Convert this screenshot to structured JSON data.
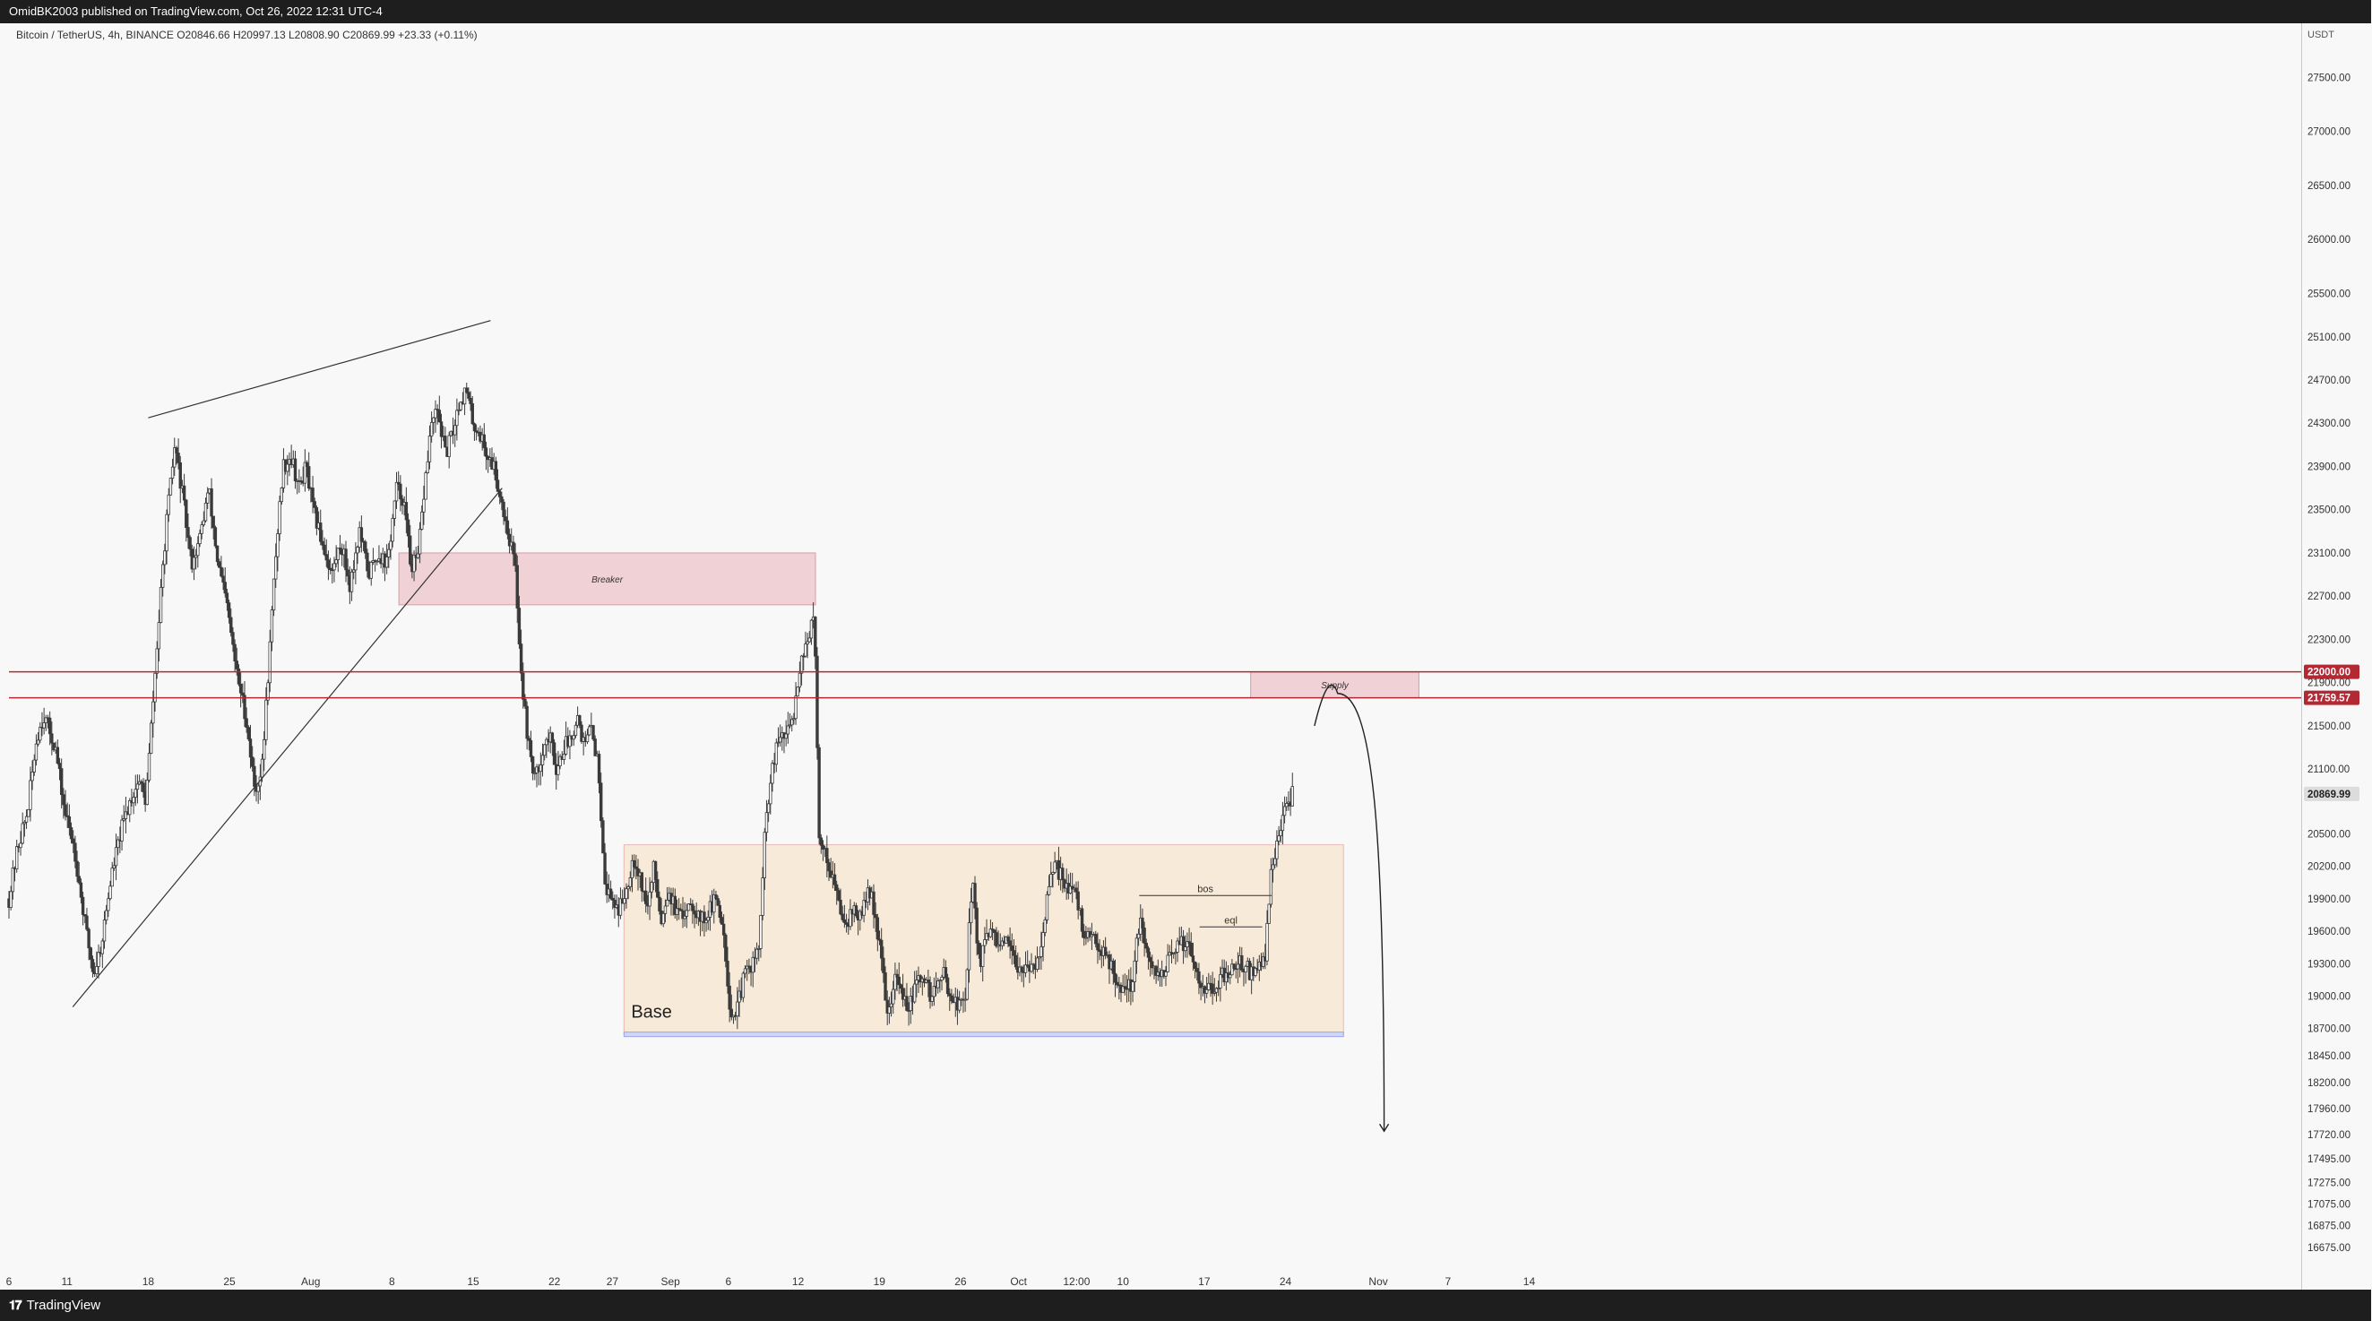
{
  "header": {
    "publish_line": "OmidBK2003 published on TradingView.com, Oct 26, 2022 12:31 UTC-4"
  },
  "legend": {
    "symbol": "Bitcoin / TetherUS, 4h, BINANCE",
    "open": "O20846.66",
    "high": "H20997.13",
    "low": "L20808.90",
    "close": "C20869.99",
    "change": "+23.33 (+0.11%)"
  },
  "footer": {
    "brand": "TradingView"
  },
  "colors": {
    "background": "#f8f8f8",
    "candle": "#3a3a3a",
    "resistance_line": "#b22833",
    "breaker_fill": "#efd1d6",
    "supply_fill": "#efd1d6",
    "base_fill": "#f8ead8",
    "base_bottom": "#9aa4e6",
    "price_tag": "#b22833",
    "current_tag": "#dcdcdc"
  },
  "chart_data": {
    "type": "candlestick",
    "symbol": "Bitcoin / TetherUS",
    "timeframe": "4h",
    "exchange": "BINANCE",
    "currency": "USDT",
    "ylim": [
      16450,
      28000
    ],
    "y_ticks": [
      "27500.00",
      "27000.00",
      "26500.00",
      "26000.00",
      "25500.00",
      "25100.00",
      "24700.00",
      "24300.00",
      "23900.00",
      "23500.00",
      "23100.00",
      "22700.00",
      "22300.00",
      "21900.00",
      "21500.00",
      "21100.00",
      "20500.00",
      "20200.00",
      "19900.00",
      "19600.00",
      "19300.00",
      "19000.00",
      "18700.00",
      "18450.00",
      "18200.00",
      "17960.00",
      "17720.00",
      "17495.00",
      "17275.00",
      "17075.00",
      "16875.00",
      "16675.00"
    ],
    "x_ticks": [
      {
        "label": "6",
        "day": 0
      },
      {
        "label": "11",
        "day": 5
      },
      {
        "label": "18",
        "day": 12
      },
      {
        "label": "25",
        "day": 19
      },
      {
        "label": "Aug",
        "day": 26
      },
      {
        "label": "8",
        "day": 33
      },
      {
        "label": "15",
        "day": 40
      },
      {
        "label": "22",
        "day": 47
      },
      {
        "label": "27",
        "day": 52
      },
      {
        "label": "Sep",
        "day": 57
      },
      {
        "label": "6",
        "day": 62
      },
      {
        "label": "12",
        "day": 68
      },
      {
        "label": "19",
        "day": 75
      },
      {
        "label": "26",
        "day": 82
      },
      {
        "label": "Oct",
        "day": 87
      },
      {
        "label": "12:00",
        "day": 92
      },
      {
        "label": "10",
        "day": 96
      },
      {
        "label": "17",
        "day": 103
      },
      {
        "label": "24",
        "day": 110
      },
      {
        "label": "Nov",
        "day": 118
      },
      {
        "label": "7",
        "day": 124
      },
      {
        "label": "14",
        "day": 131
      }
    ],
    "price_path": [
      {
        "day": 0.0,
        "price": 19900
      },
      {
        "day": 0.8,
        "price": 20400
      },
      {
        "day": 1.6,
        "price": 20700
      },
      {
        "day": 2.4,
        "price": 21400
      },
      {
        "day": 3.0,
        "price": 21600
      },
      {
        "day": 4.0,
        "price": 21300
      },
      {
        "day": 4.8,
        "price": 20700
      },
      {
        "day": 5.6,
        "price": 20400
      },
      {
        "day": 6.5,
        "price": 19700
      },
      {
        "day": 7.3,
        "price": 19200
      },
      {
        "day": 8.0,
        "price": 19500
      },
      {
        "day": 8.8,
        "price": 20100
      },
      {
        "day": 9.6,
        "price": 20500
      },
      {
        "day": 10.4,
        "price": 20800
      },
      {
        "day": 11.2,
        "price": 21000
      },
      {
        "day": 11.8,
        "price": 20800
      },
      {
        "day": 12.2,
        "price": 21400
      },
      {
        "day": 12.8,
        "price": 22300
      },
      {
        "day": 13.5,
        "price": 23300
      },
      {
        "day": 14.3,
        "price": 24100
      },
      {
        "day": 15.0,
        "price": 23600
      },
      {
        "day": 15.7,
        "price": 23000
      },
      {
        "day": 16.4,
        "price": 23200
      },
      {
        "day": 17.2,
        "price": 23700
      },
      {
        "day": 18.0,
        "price": 23000
      },
      {
        "day": 18.8,
        "price": 22600
      },
      {
        "day": 19.6,
        "price": 22000
      },
      {
        "day": 20.4,
        "price": 21600
      },
      {
        "day": 21.2,
        "price": 20900
      },
      {
        "day": 21.8,
        "price": 21100
      },
      {
        "day": 22.4,
        "price": 22100
      },
      {
        "day": 23.0,
        "price": 23100
      },
      {
        "day": 23.6,
        "price": 23900
      },
      {
        "day": 24.3,
        "price": 24000
      },
      {
        "day": 25.0,
        "price": 23700
      },
      {
        "day": 25.6,
        "price": 23900
      },
      {
        "day": 26.2,
        "price": 23500
      },
      {
        "day": 27.0,
        "price": 23200
      },
      {
        "day": 27.8,
        "price": 22900
      },
      {
        "day": 28.6,
        "price": 23200
      },
      {
        "day": 29.4,
        "price": 22800
      },
      {
        "day": 30.2,
        "price": 23300
      },
      {
        "day": 31.0,
        "price": 22900
      },
      {
        "day": 31.8,
        "price": 23100
      },
      {
        "day": 32.6,
        "price": 23000
      },
      {
        "day": 33.4,
        "price": 23700
      },
      {
        "day": 34.0,
        "price": 23600
      },
      {
        "day": 34.6,
        "price": 23000
      },
      {
        "day": 35.2,
        "price": 23000
      },
      {
        "day": 35.8,
        "price": 23700
      },
      {
        "day": 36.4,
        "price": 24300
      },
      {
        "day": 37.0,
        "price": 24400
      },
      {
        "day": 37.6,
        "price": 24000
      },
      {
        "day": 38.2,
        "price": 24200
      },
      {
        "day": 38.8,
        "price": 24500
      },
      {
        "day": 39.4,
        "price": 24600
      },
      {
        "day": 40.0,
        "price": 24300
      },
      {
        "day": 40.6,
        "price": 24200
      },
      {
        "day": 41.2,
        "price": 24000
      },
      {
        "day": 41.8,
        "price": 23900
      },
      {
        "day": 42.4,
        "price": 23600
      },
      {
        "day": 43.0,
        "price": 23300
      },
      {
        "day": 43.6,
        "price": 23000
      },
      {
        "day": 44.2,
        "price": 21900
      },
      {
        "day": 44.8,
        "price": 21300
      },
      {
        "day": 45.4,
        "price": 21000
      },
      {
        "day": 46.0,
        "price": 21300
      },
      {
        "day": 46.6,
        "price": 21400
      },
      {
        "day": 47.2,
        "price": 21100
      },
      {
        "day": 47.8,
        "price": 21300
      },
      {
        "day": 48.4,
        "price": 21400
      },
      {
        "day": 49.0,
        "price": 21600
      },
      {
        "day": 49.6,
        "price": 21300
      },
      {
        "day": 50.2,
        "price": 21500
      },
      {
        "day": 50.8,
        "price": 21100
      },
      {
        "day": 51.4,
        "price": 20000
      },
      {
        "day": 52.0,
        "price": 19900
      },
      {
        "day": 52.6,
        "price": 19800
      },
      {
        "day": 53.2,
        "price": 20000
      },
      {
        "day": 53.8,
        "price": 20300
      },
      {
        "day": 54.4,
        "price": 20100
      },
      {
        "day": 55.0,
        "price": 19800
      },
      {
        "day": 55.6,
        "price": 20200
      },
      {
        "day": 56.2,
        "price": 19700
      },
      {
        "day": 56.8,
        "price": 20000
      },
      {
        "day": 57.4,
        "price": 19800
      },
      {
        "day": 58.0,
        "price": 19700
      },
      {
        "day": 58.6,
        "price": 19900
      },
      {
        "day": 59.2,
        "price": 19800
      },
      {
        "day": 59.8,
        "price": 19700
      },
      {
        "day": 60.4,
        "price": 19800
      },
      {
        "day": 61.0,
        "price": 19900
      },
      {
        "day": 61.6,
        "price": 19600
      },
      {
        "day": 62.2,
        "price": 18800
      },
      {
        "day": 62.8,
        "price": 18900
      },
      {
        "day": 63.4,
        "price": 19200
      },
      {
        "day": 64.0,
        "price": 19300
      },
      {
        "day": 64.6,
        "price": 19400
      },
      {
        "day": 65.2,
        "price": 20600
      },
      {
        "day": 65.8,
        "price": 21100
      },
      {
        "day": 66.4,
        "price": 21400
      },
      {
        "day": 67.0,
        "price": 21400
      },
      {
        "day": 67.6,
        "price": 21600
      },
      {
        "day": 68.2,
        "price": 22100
      },
      {
        "day": 68.8,
        "price": 22300
      },
      {
        "day": 69.4,
        "price": 22500
      },
      {
        "day": 69.8,
        "price": 20500
      },
      {
        "day": 70.4,
        "price": 20300
      },
      {
        "day": 71.0,
        "price": 20100
      },
      {
        "day": 71.6,
        "price": 19800
      },
      {
        "day": 72.2,
        "price": 19700
      },
      {
        "day": 72.8,
        "price": 19800
      },
      {
        "day": 73.4,
        "price": 19700
      },
      {
        "day": 74.0,
        "price": 20000
      },
      {
        "day": 74.6,
        "price": 19800
      },
      {
        "day": 75.2,
        "price": 19300
      },
      {
        "day": 75.8,
        "price": 18800
      },
      {
        "day": 76.4,
        "price": 19200
      },
      {
        "day": 77.0,
        "price": 19000
      },
      {
        "day": 77.6,
        "price": 18900
      },
      {
        "day": 78.2,
        "price": 19100
      },
      {
        "day": 78.8,
        "price": 19200
      },
      {
        "day": 79.4,
        "price": 19000
      },
      {
        "day": 80.0,
        "price": 19100
      },
      {
        "day": 80.6,
        "price": 19200
      },
      {
        "day": 81.2,
        "price": 19000
      },
      {
        "day": 81.8,
        "price": 18900
      },
      {
        "day": 82.4,
        "price": 19000
      },
      {
        "day": 83.0,
        "price": 20100
      },
      {
        "day": 83.6,
        "price": 19300
      },
      {
        "day": 84.2,
        "price": 19500
      },
      {
        "day": 84.8,
        "price": 19600
      },
      {
        "day": 85.4,
        "price": 19400
      },
      {
        "day": 86.0,
        "price": 19500
      },
      {
        "day": 86.6,
        "price": 19300
      },
      {
        "day": 87.2,
        "price": 19300
      },
      {
        "day": 87.8,
        "price": 19200
      },
      {
        "day": 88.4,
        "price": 19300
      },
      {
        "day": 89.0,
        "price": 19500
      },
      {
        "day": 89.6,
        "price": 20000
      },
      {
        "day": 90.2,
        "price": 20200
      },
      {
        "day": 90.8,
        "price": 20100
      },
      {
        "day": 91.4,
        "price": 20000
      },
      {
        "day": 92.0,
        "price": 19900
      },
      {
        "day": 92.6,
        "price": 19600
      },
      {
        "day": 93.2,
        "price": 19500
      },
      {
        "day": 93.8,
        "price": 19500
      },
      {
        "day": 94.4,
        "price": 19400
      },
      {
        "day": 95.0,
        "price": 19300
      },
      {
        "day": 95.6,
        "price": 19100
      },
      {
        "day": 96.2,
        "price": 19100
      },
      {
        "day": 96.8,
        "price": 19100
      },
      {
        "day": 97.4,
        "price": 19700
      },
      {
        "day": 98.0,
        "price": 19400
      },
      {
        "day": 98.6,
        "price": 19200
      },
      {
        "day": 99.2,
        "price": 19200
      },
      {
        "day": 99.8,
        "price": 19300
      },
      {
        "day": 100.4,
        "price": 19400
      },
      {
        "day": 101.0,
        "price": 19500
      },
      {
        "day": 101.6,
        "price": 19500
      },
      {
        "day": 102.2,
        "price": 19300
      },
      {
        "day": 102.8,
        "price": 19100
      },
      {
        "day": 103.4,
        "price": 19100
      },
      {
        "day": 104.0,
        "price": 19000
      },
      {
        "day": 104.6,
        "price": 19200
      },
      {
        "day": 105.2,
        "price": 19200
      },
      {
        "day": 105.8,
        "price": 19300
      },
      {
        "day": 106.4,
        "price": 19300
      },
      {
        "day": 107.0,
        "price": 19200
      },
      {
        "day": 107.6,
        "price": 19300
      },
      {
        "day": 108.2,
        "price": 19300
      },
      {
        "day": 108.8,
        "price": 20200
      },
      {
        "day": 109.4,
        "price": 20500
      },
      {
        "day": 110.0,
        "price": 20700
      },
      {
        "day": 110.6,
        "price": 20870
      }
    ],
    "candle_count": 660,
    "annotations": [
      {
        "type": "line",
        "role": "upper-trendline",
        "from": {
          "day": 12.0,
          "price": 24350
        },
        "to": {
          "day": 41.5,
          "price": 25250
        }
      },
      {
        "type": "line",
        "role": "lower-trendline",
        "from": {
          "day": 5.5,
          "price": 18900
        },
        "to": {
          "day": 42.5,
          "price": 23700
        }
      },
      {
        "type": "rect",
        "role": "breaker-zone",
        "label": "Breaker",
        "x0": {
          "day": 33.6
        },
        "x1": {
          "day": 69.5
        },
        "y0": 22620,
        "y1": 23100
      },
      {
        "type": "hline",
        "role": "resistance",
        "price": 22000,
        "label": "22000.00"
      },
      {
        "type": "hline",
        "role": "resistance",
        "price": 21759.57,
        "label": "21759.57"
      },
      {
        "type": "rect",
        "role": "supply-zone",
        "label": "Supply",
        "x0": {
          "day": 107.0
        },
        "x1": {
          "day": 121.5
        },
        "y0": 21760,
        "y1": 22000
      },
      {
        "type": "rect",
        "role": "base-zone",
        "label": "Base",
        "x0": {
          "day": 53.0
        },
        "x1": {
          "day": 115.0
        },
        "y0": 18650,
        "y1": 20400
      },
      {
        "type": "label",
        "role": "bos",
        "text": "bos",
        "price": 19930
      },
      {
        "type": "label",
        "role": "eql",
        "text": "eql",
        "price": 19640
      },
      {
        "type": "projection",
        "role": "projected-path",
        "from": {
          "day": 112.5,
          "price": 21500
        },
        "peak": {
          "day": 114.5,
          "price": 21800
        },
        "to": {
          "day": 118.5,
          "price": 17750
        }
      }
    ],
    "current_price": "20869.99",
    "price_tags": [
      "22000.00",
      "21759.57",
      "20869.99"
    ]
  }
}
